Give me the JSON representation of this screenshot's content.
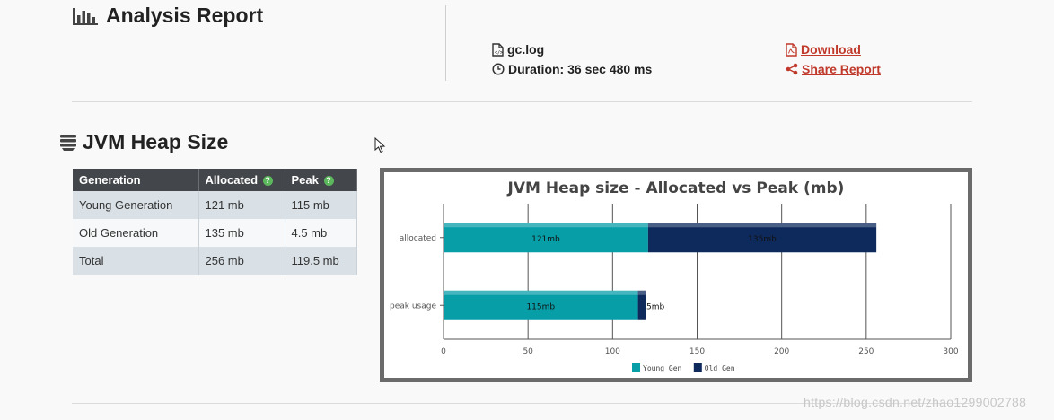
{
  "header": {
    "title": "Analysis Report",
    "file_name": "gc.log",
    "duration": "Duration: 36 sec 480 ms",
    "download_label": "Download",
    "share_label": "Share Report"
  },
  "heap_section": {
    "title": "JVM Heap Size",
    "table": {
      "headers": [
        "Generation",
        "Allocated",
        "Peak"
      ],
      "rows": [
        [
          "Young Generation",
          "121 mb",
          "115 mb"
        ],
        [
          "Old Generation",
          "135 mb",
          "4.5 mb"
        ],
        [
          "Total",
          "256 mb",
          "119.5 mb"
        ]
      ]
    }
  },
  "chart_data": {
    "type": "bar",
    "orientation": "horizontal",
    "stacked": true,
    "title": "JVM Heap size - Allocated vs Peak (mb)",
    "categories": [
      "allocated",
      "peak usage"
    ],
    "series": [
      {
        "name": "Young Gen",
        "values": [
          121,
          115
        ],
        "labels": [
          "121mb",
          "115mb"
        ],
        "color": "#089ea8"
      },
      {
        "name": "Old Gen",
        "values": [
          135,
          4.5
        ],
        "labels": [
          "135mb",
          "5mb"
        ],
        "color": "#0e2a5c"
      }
    ],
    "xlim": [
      0,
      300
    ],
    "xticks": [
      0,
      50,
      100,
      150,
      200,
      250,
      300
    ],
    "grid": true,
    "legend": "bottom-center"
  },
  "watermark": "https://blog.csdn.net/zhao1299002788",
  "colors": {
    "link": "#c0392b",
    "table_header": "#43464b",
    "frame": "#6b6b6b"
  }
}
